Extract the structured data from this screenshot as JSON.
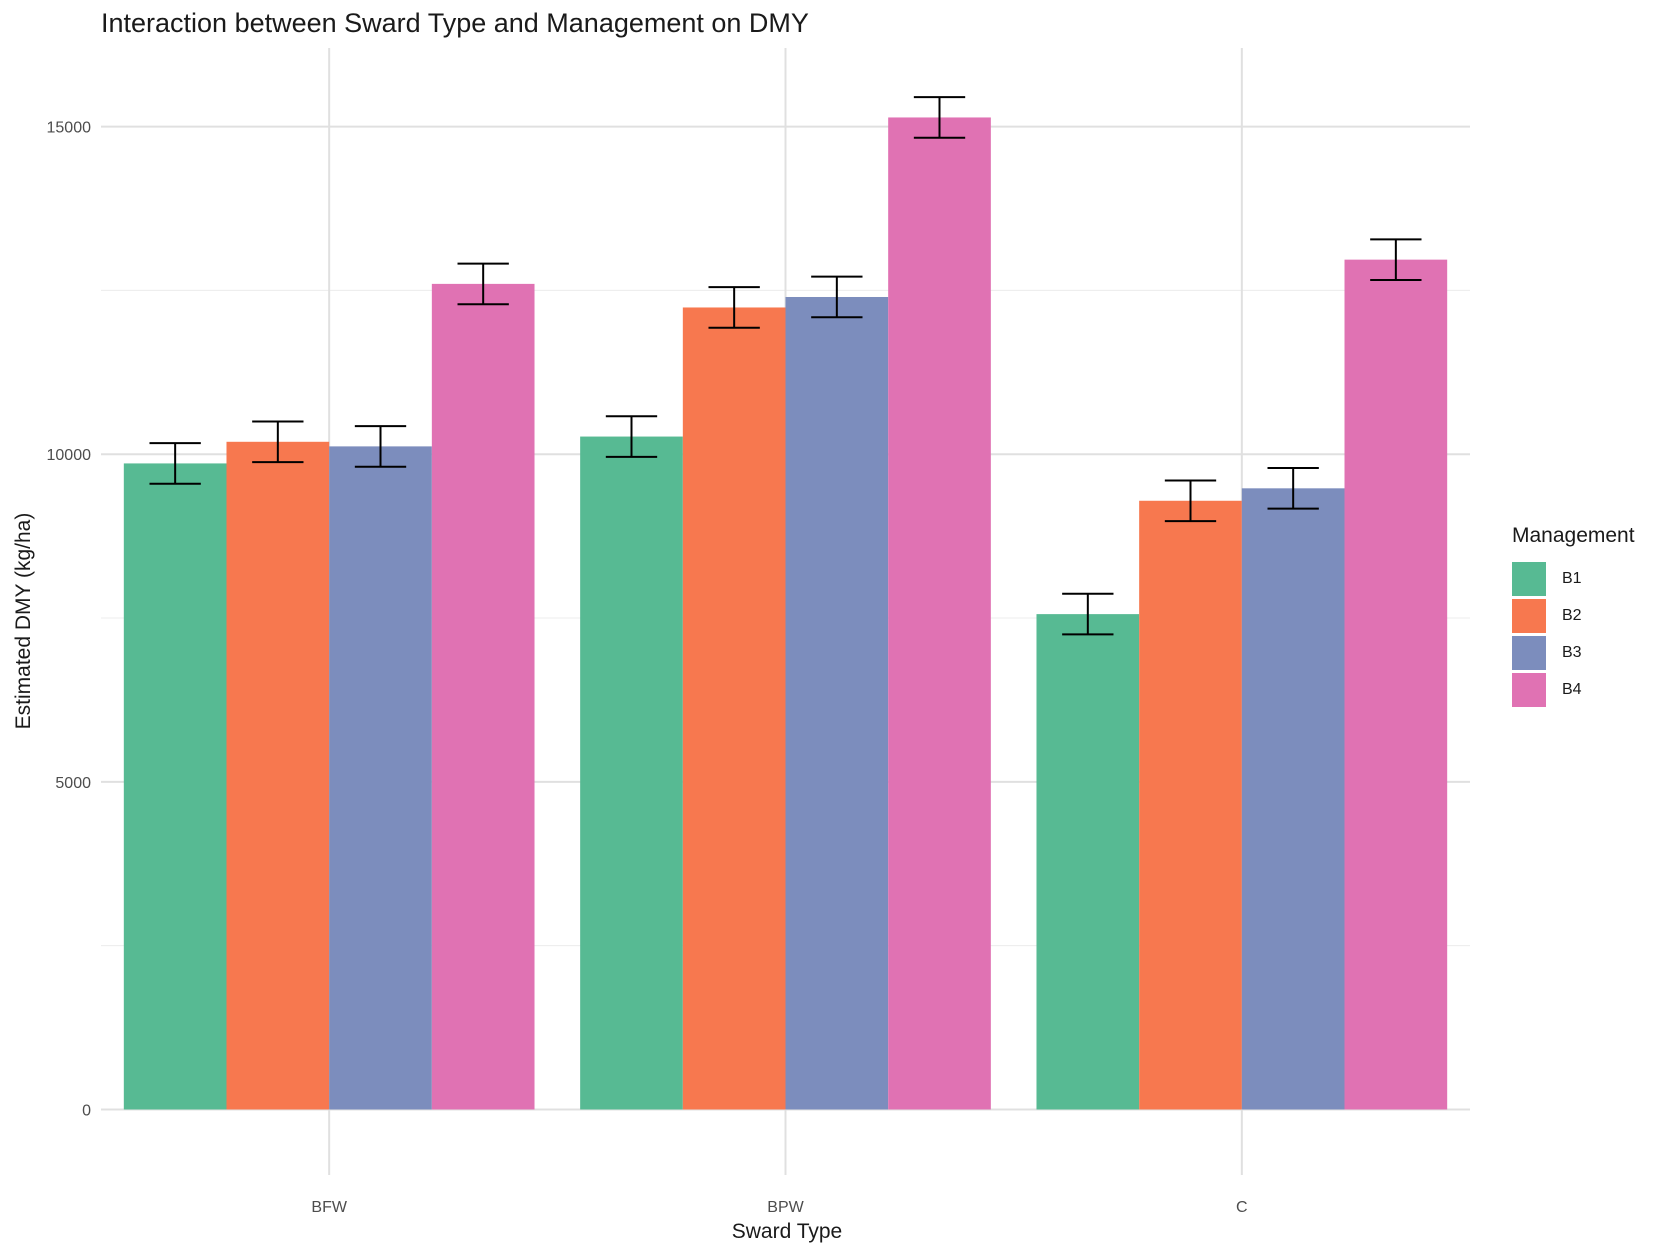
{
  "chart_data": {
    "type": "bar",
    "title": "Interaction between Sward Type and Management on DMY",
    "xlabel": "Sward Type",
    "ylabel": "Estimated DMY (kg/ha)",
    "categories": [
      "BFW",
      "BPW",
      "C"
    ],
    "ylim": [
      -1000,
      16200
    ],
    "yticks": [
      0,
      5000,
      10000,
      15000
    ],
    "grid": true,
    "legend": {
      "title": "Management",
      "placement": "right"
    },
    "series": [
      {
        "name": "B1",
        "color": "#57BA93",
        "values": [
          9860,
          10270,
          7560
        ],
        "error": [
          310,
          310,
          310
        ]
      },
      {
        "name": "B2",
        "color": "#F7784F",
        "values": [
          10190,
          12240,
          9290
        ],
        "error": [
          310,
          310,
          310
        ]
      },
      {
        "name": "B3",
        "color": "#7C8DBD",
        "values": [
          10120,
          12400,
          9480
        ],
        "error": [
          310,
          310,
          310
        ]
      },
      {
        "name": "B4",
        "color": "#E072B3",
        "values": [
          12600,
          15140,
          12970
        ],
        "error": [
          310,
          310,
          310
        ]
      }
    ]
  }
}
